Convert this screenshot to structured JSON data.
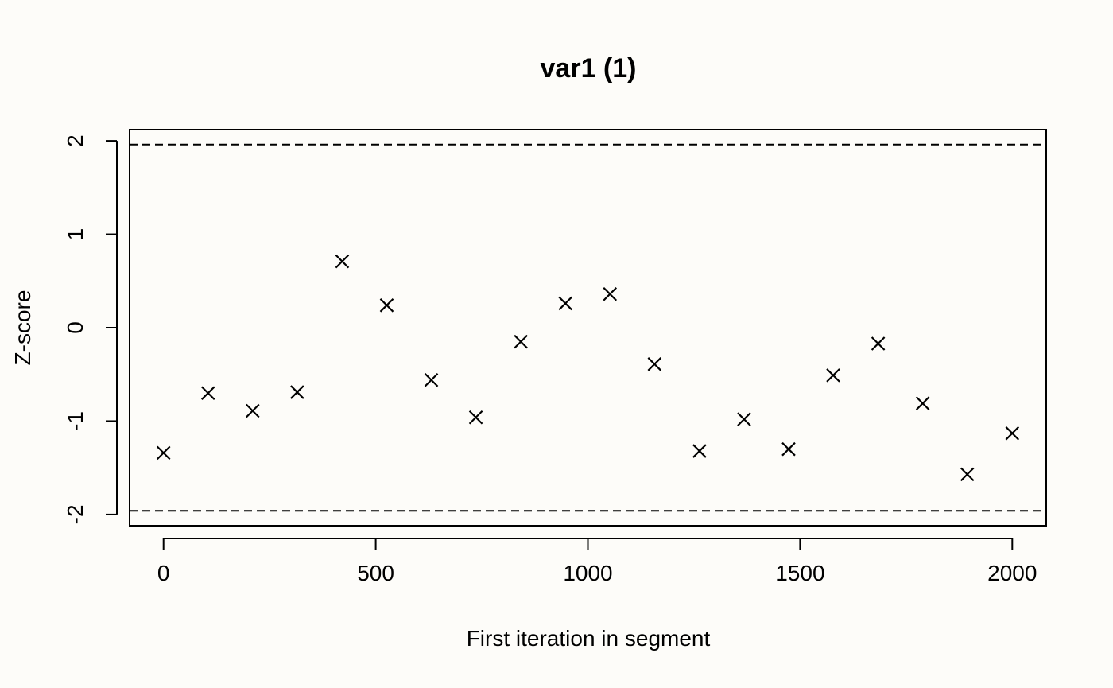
{
  "chart_data": {
    "type": "scatter",
    "title": "var1 (1)",
    "xlabel": "First iteration in segment",
    "ylabel": "Z-score",
    "xlim": [
      -80,
      2080
    ],
    "ylim": [
      -2.12,
      2.12
    ],
    "xticks": [
      0,
      500,
      1000,
      1500,
      2000
    ],
    "xtick_labels": [
      "0",
      "500",
      "1000",
      "1500",
      "2000"
    ],
    "yticks": [
      -2,
      -1,
      0,
      1,
      2
    ],
    "ytick_labels": [
      "-2",
      "-1",
      "0",
      "1",
      "2"
    ],
    "reference_lines": [
      1.96,
      -1.96
    ],
    "marker": "x",
    "grid": false,
    "legend": "none",
    "x": [
      0,
      105,
      210,
      315,
      421,
      526,
      631,
      736,
      842,
      947,
      1052,
      1157,
      1263,
      1368,
      1473,
      1578,
      1684,
      1789,
      1894,
      2000
    ],
    "y": [
      -1.34,
      -0.7,
      -0.89,
      -0.69,
      0.71,
      0.24,
      -0.56,
      -0.96,
      -0.15,
      0.26,
      0.36,
      -0.39,
      -1.32,
      -0.98,
      -1.3,
      -0.51,
      -0.17,
      -0.81,
      -1.57,
      -1.13
    ]
  }
}
